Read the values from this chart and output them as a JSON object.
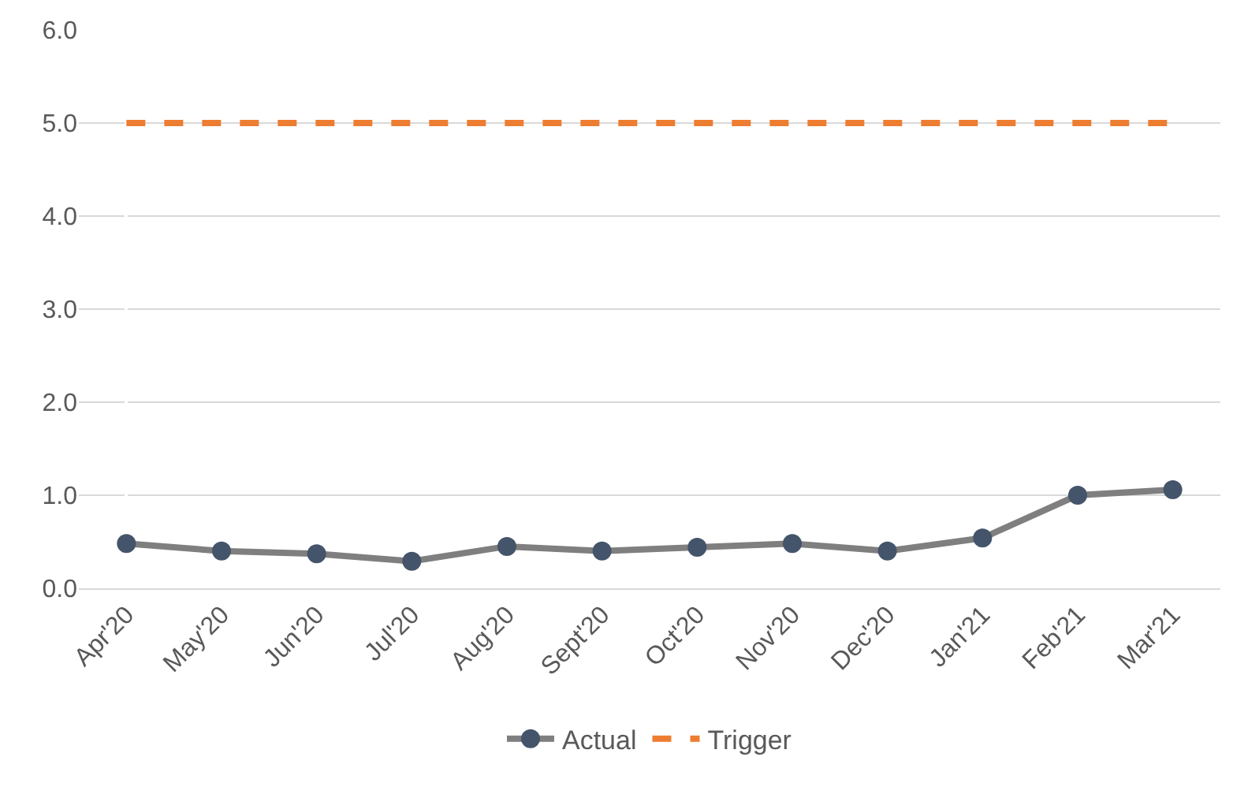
{
  "chart_data": {
    "type": "line",
    "categories": [
      "Apr'20",
      "May'20",
      "Jun'20",
      "Jul'20",
      "Aug'20",
      "Sept'20",
      "Oct'20",
      "Nov'20",
      "Dec'20",
      "Jan'21",
      "Feb'21",
      "Mar'21"
    ],
    "series": [
      {
        "name": "Actual",
        "color": "#7f7f7f",
        "marker": "circle",
        "line_style": "solid",
        "values": [
          0.48,
          0.4,
          0.37,
          0.29,
          0.45,
          0.4,
          0.44,
          0.48,
          0.4,
          0.54,
          1.0,
          1.06
        ]
      },
      {
        "name": "Trigger",
        "color": "#ed7d31",
        "marker": "none",
        "line_style": "dashed",
        "values": [
          5,
          5,
          5,
          5,
          5,
          5,
          5,
          5,
          5,
          5,
          5,
          5
        ]
      }
    ],
    "ylim": [
      0,
      6
    ],
    "yticks": [
      {
        "value": 0,
        "label": "0.0"
      },
      {
        "value": 1,
        "label": "1.0"
      },
      {
        "value": 2,
        "label": "2.0"
      },
      {
        "value": 3,
        "label": "3.0"
      },
      {
        "value": 4,
        "label": "4.0"
      },
      {
        "value": 5,
        "label": "5.0"
      },
      {
        "value": 6,
        "label": "6.0"
      }
    ],
    "grid": "y",
    "legend": "bottom"
  }
}
